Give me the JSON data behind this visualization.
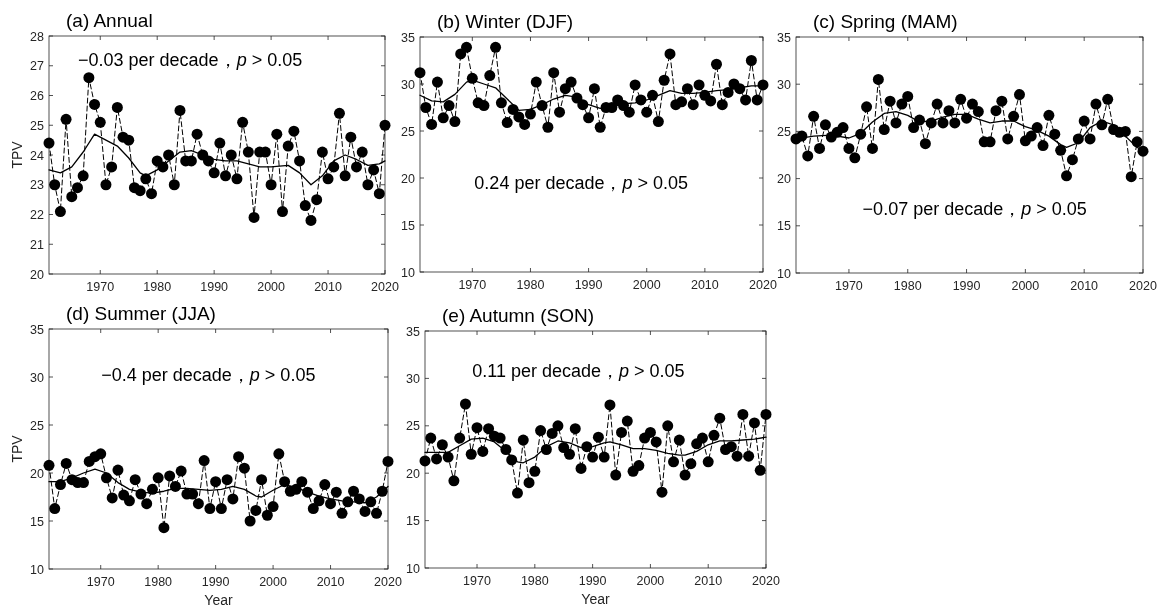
{
  "chart_data": [
    {
      "type": "line",
      "title": "(a) Annual",
      "ylabel": "TPV",
      "xlim": [
        1961,
        2020
      ],
      "xticks": [
        1970,
        1980,
        1990,
        2000,
        2010,
        2020
      ],
      "ylim": [
        20,
        28
      ],
      "yticks": [
        20,
        21,
        22,
        23,
        24,
        25,
        26,
        27,
        28
      ],
      "annotations": [
        "−0.03 per decade，*p* > 0.05"
      ],
      "series": [
        {
          "type": "line",
          "color": "#000000",
          "marker": "circle",
          "line_style": "dashed",
          "x": [
            1961,
            1962,
            1963,
            1964,
            1965,
            1966,
            1967,
            1968,
            1969,
            1970,
            1971,
            1972,
            1973,
            1974,
            1975,
            1976,
            1977,
            1978,
            1979,
            1980,
            1981,
            1982,
            1983,
            1984,
            1985,
            1986,
            1987,
            1988,
            1989,
            1990,
            1991,
            1992,
            1993,
            1994,
            1995,
            1996,
            1997,
            1998,
            1999,
            2000,
            2001,
            2002,
            2003,
            2004,
            2005,
            2006,
            2007,
            2008,
            2009,
            2010,
            2011,
            2012,
            2013,
            2014,
            2015,
            2016,
            2017,
            2018,
            2019,
            2020
          ],
          "values": [
            24.4,
            23.0,
            22.1,
            25.2,
            22.6,
            22.9,
            23.3,
            26.6,
            25.7,
            25.1,
            23.0,
            23.6,
            25.6,
            24.6,
            24.5,
            22.9,
            22.8,
            23.2,
            22.7,
            23.8,
            23.6,
            24.0,
            23.0,
            25.5,
            23.8,
            23.8,
            24.7,
            24.0,
            23.8,
            23.4,
            24.4,
            23.3,
            24.0,
            23.2,
            25.1,
            24.1,
            21.9,
            24.1,
            24.1,
            23.0,
            24.7,
            22.1,
            24.3,
            24.8,
            23.8,
            22.3,
            21.8,
            22.5,
            24.1,
            23.2,
            23.6,
            25.4,
            23.3,
            24.6,
            23.6,
            24.1,
            23.0,
            23.5,
            22.7,
            25.0
          ]
        },
        {
          "type": "line",
          "color": "#000000",
          "marker": "none",
          "line_style": "solid",
          "x": [
            1961,
            1963,
            1965,
            1967,
            1969,
            1971,
            1973,
            1975,
            1977,
            1978,
            1980,
            1982,
            1984,
            1986,
            1988,
            1990,
            1992,
            1994,
            1996,
            1998,
            2000,
            2003,
            2005,
            2007,
            2009,
            2011,
            2013,
            2015,
            2017,
            2019,
            2020
          ],
          "values": [
            23.5,
            23.4,
            23.6,
            24.1,
            24.7,
            24.5,
            24.3,
            23.9,
            23.4,
            23.3,
            23.5,
            23.8,
            24.1,
            24.15,
            24.0,
            23.85,
            23.8,
            23.8,
            23.7,
            23.6,
            23.6,
            23.65,
            23.4,
            23.0,
            23.3,
            23.8,
            24.0,
            23.85,
            23.65,
            23.7,
            23.8
          ]
        }
      ]
    },
    {
      "type": "line",
      "title": "(b) Winter (DJF)",
      "xlim": [
        1961,
        2020
      ],
      "xticks": [
        1970,
        1980,
        1990,
        2000,
        2010,
        2020
      ],
      "ylim": [
        10,
        35
      ],
      "yticks": [
        10,
        15,
        20,
        25,
        30,
        35
      ],
      "annotations": [
        "0.24 per decade，*p* > 0.05"
      ],
      "series": [
        {
          "type": "line",
          "color": "#000000",
          "marker": "circle",
          "line_style": "dashed",
          "x": [
            1961,
            1962,
            1963,
            1964,
            1965,
            1966,
            1967,
            1968,
            1969,
            1970,
            1971,
            1972,
            1973,
            1974,
            1975,
            1976,
            1977,
            1978,
            1979,
            1980,
            1981,
            1982,
            1983,
            1984,
            1985,
            1986,
            1987,
            1988,
            1989,
            1990,
            1991,
            1992,
            1993,
            1994,
            1995,
            1996,
            1997,
            1998,
            1999,
            2000,
            2001,
            2002,
            2003,
            2004,
            2005,
            2006,
            2007,
            2008,
            2009,
            2010,
            2011,
            2012,
            2013,
            2014,
            2015,
            2016,
            2017,
            2018,
            2019,
            2020
          ],
          "values": [
            31.2,
            27.5,
            25.7,
            30.2,
            26.4,
            27.7,
            26.0,
            33.2,
            33.9,
            30.6,
            28.0,
            27.7,
            30.9,
            33.9,
            28.0,
            25.9,
            27.3,
            26.5,
            25.7,
            26.8,
            30.2,
            27.7,
            25.4,
            31.2,
            27.0,
            29.5,
            30.2,
            28.5,
            27.8,
            26.4,
            29.5,
            25.4,
            27.5,
            27.5,
            28.3,
            27.7,
            27.0,
            29.9,
            28.3,
            27.0,
            28.8,
            26.0,
            30.4,
            33.2,
            27.8,
            28.1,
            29.5,
            27.8,
            29.9,
            28.8,
            28.2,
            32.1,
            27.8,
            29.1,
            30.0,
            29.5,
            28.3,
            32.5,
            28.3,
            29.9
          ]
        },
        {
          "type": "line",
          "color": "#000000",
          "marker": "none",
          "line_style": "solid",
          "x": [
            1961,
            1963,
            1965,
            1967,
            1969,
            1970,
            1972,
            1974,
            1976,
            1978,
            1980,
            1982,
            1984,
            1986,
            1988,
            1990,
            1992,
            1994,
            1996,
            1998,
            2000,
            2002,
            2004,
            2006,
            2008,
            2010,
            2012,
            2014,
            2016,
            2018,
            2020
          ],
          "values": [
            28.8,
            28.2,
            28.1,
            28.9,
            30.2,
            30.4,
            30.0,
            29.6,
            28.4,
            27.2,
            27.3,
            27.8,
            28.4,
            28.8,
            28.6,
            27.8,
            27.4,
            27.5,
            27.9,
            28.0,
            28.3,
            28.8,
            29.3,
            29.0,
            29.0,
            29.1,
            29.3,
            29.4,
            29.6,
            29.8,
            29.8
          ]
        }
      ]
    },
    {
      "type": "line",
      "title": "(c) Spring (MAM)",
      "xlim": [
        1961,
        2020
      ],
      "xticks": [
        1970,
        1980,
        1990,
        2000,
        2010,
        2020
      ],
      "ylim": [
        10,
        35
      ],
      "yticks": [
        10,
        15,
        20,
        25,
        30,
        35
      ],
      "annotations": [
        "−0.07 per decade，*p* > 0.05"
      ],
      "series": [
        {
          "type": "line",
          "color": "#000000",
          "marker": "circle",
          "line_style": "dashed",
          "x": [
            1961,
            1962,
            1963,
            1964,
            1965,
            1966,
            1967,
            1968,
            1969,
            1970,
            1971,
            1972,
            1973,
            1974,
            1975,
            1976,
            1977,
            1978,
            1979,
            1980,
            1981,
            1982,
            1983,
            1984,
            1985,
            1986,
            1987,
            1988,
            1989,
            1990,
            1991,
            1992,
            1993,
            1994,
            1995,
            1996,
            1997,
            1998,
            1999,
            2000,
            2001,
            2002,
            2003,
            2004,
            2005,
            2006,
            2007,
            2008,
            2009,
            2010,
            2011,
            2012,
            2013,
            2014,
            2015,
            2016,
            2017,
            2018,
            2019,
            2020
          ],
          "values": [
            24.2,
            24.5,
            22.4,
            26.6,
            23.2,
            25.7,
            24.4,
            24.9,
            25.4,
            23.2,
            22.2,
            24.7,
            27.6,
            23.2,
            30.5,
            25.2,
            28.2,
            25.9,
            27.9,
            28.7,
            25.4,
            26.2,
            23.7,
            25.9,
            27.9,
            25.9,
            27.2,
            25.9,
            28.4,
            26.4,
            27.9,
            27.1,
            23.9,
            23.9,
            27.2,
            28.2,
            24.2,
            26.6,
            28.9,
            24.0,
            24.5,
            25.4,
            23.5,
            26.7,
            24.7,
            23.0,
            20.3,
            22.0,
            24.2,
            26.1,
            24.2,
            27.9,
            25.7,
            28.4,
            25.2,
            24.9,
            25.0,
            20.2,
            23.9,
            22.9
          ]
        },
        {
          "type": "line",
          "color": "#000000",
          "marker": "none",
          "line_style": "solid",
          "x": [
            1961,
            1964,
            1967,
            1970,
            1972,
            1974,
            1976,
            1978,
            1980,
            1982,
            1984,
            1986,
            1988,
            1990,
            1992,
            1994,
            1996,
            1998,
            2000,
            2002,
            2004,
            2006,
            2007,
            2009,
            2011,
            2013,
            2015,
            2017,
            2019,
            2020
          ],
          "values": [
            24.2,
            24.5,
            24.6,
            24.3,
            24.8,
            26.0,
            26.9,
            27.1,
            26.7,
            26.0,
            26.1,
            26.5,
            26.8,
            26.8,
            26.3,
            25.9,
            26.1,
            26.1,
            25.5,
            25.1,
            24.5,
            23.6,
            23.3,
            23.8,
            25.4,
            26.1,
            25.7,
            24.5,
            23.3,
            23.0
          ]
        }
      ]
    },
    {
      "type": "line",
      "title": "(d) Summer (JJA)",
      "xlabel": "Year",
      "ylabel": "TPV",
      "xlim": [
        1961,
        2020
      ],
      "xticks": [
        1970,
        1980,
        1990,
        2000,
        2010,
        2020
      ],
      "ylim": [
        10,
        35
      ],
      "yticks": [
        10,
        15,
        20,
        25,
        30,
        35
      ],
      "annotations": [
        "−0.4 per decade，*p* > 0.05"
      ],
      "series": [
        {
          "type": "line",
          "color": "#000000",
          "marker": "circle",
          "line_style": "dashed",
          "x": [
            1961,
            1962,
            1963,
            1964,
            1965,
            1966,
            1967,
            1968,
            1969,
            1970,
            1971,
            1972,
            1973,
            1974,
            1975,
            1976,
            1977,
            1978,
            1979,
            1980,
            1981,
            1982,
            1983,
            1984,
            1985,
            1986,
            1987,
            1988,
            1989,
            1990,
            1991,
            1992,
            1993,
            1994,
            1995,
            1996,
            1997,
            1998,
            1999,
            2000,
            2001,
            2002,
            2003,
            2004,
            2005,
            2006,
            2007,
            2008,
            2009,
            2010,
            2011,
            2012,
            2013,
            2014,
            2015,
            2016,
            2017,
            2018,
            2019,
            2020
          ],
          "values": [
            20.8,
            16.3,
            18.8,
            21.0,
            19.3,
            19.0,
            19.0,
            21.2,
            21.7,
            22.0,
            19.5,
            17.4,
            20.3,
            17.7,
            17.1,
            19.3,
            17.8,
            16.8,
            18.3,
            19.5,
            14.3,
            19.7,
            18.6,
            20.2,
            17.8,
            17.8,
            16.8,
            21.3,
            16.3,
            19.1,
            16.3,
            19.3,
            17.3,
            21.7,
            20.5,
            15.0,
            16.1,
            19.3,
            15.6,
            16.5,
            22.0,
            19.1,
            18.1,
            18.3,
            19.1,
            18.0,
            16.3,
            17.1,
            18.8,
            16.8,
            18.0,
            15.8,
            17.0,
            18.1,
            17.3,
            16.0,
            17.0,
            15.8,
            18.1,
            21.2
          ]
        },
        {
          "type": "line",
          "color": "#000000",
          "marker": "none",
          "line_style": "solid",
          "x": [
            1961,
            1963,
            1965,
            1967,
            1969,
            1971,
            1973,
            1975,
            1977,
            1979,
            1981,
            1983,
            1985,
            1987,
            1989,
            1991,
            1993,
            1995,
            1997,
            1998,
            2000,
            2002,
            2004,
            2006,
            2008,
            2010,
            2012,
            2014,
            2016,
            2018,
            2020
          ],
          "values": [
            19.1,
            19.1,
            19.5,
            20.0,
            20.4,
            20.0,
            19.0,
            18.3,
            18.0,
            17.9,
            18.1,
            18.4,
            18.4,
            18.3,
            18.2,
            18.3,
            18.6,
            18.3,
            17.6,
            17.5,
            18.2,
            18.8,
            18.5,
            18.0,
            17.6,
            17.3,
            17.1,
            17.0,
            16.9,
            17.5,
            18.6
          ]
        }
      ]
    },
    {
      "type": "line",
      "title": "(e) Autumn (SON)",
      "xlabel": "Year",
      "xlim": [
        1961,
        2020
      ],
      "xticks": [
        1970,
        1980,
        1990,
        2000,
        2010,
        2020
      ],
      "ylim": [
        10,
        35
      ],
      "yticks": [
        10,
        15,
        20,
        25,
        30,
        35
      ],
      "annotations": [
        "0.11 per decade，*p* > 0.05"
      ],
      "series": [
        {
          "type": "line",
          "color": "#000000",
          "marker": "circle",
          "line_style": "dashed",
          "x": [
            1961,
            1962,
            1963,
            1964,
            1965,
            1966,
            1967,
            1968,
            1969,
            1970,
            1971,
            1972,
            1973,
            1974,
            1975,
            1976,
            1977,
            1978,
            1979,
            1980,
            1981,
            1982,
            1983,
            1984,
            1985,
            1986,
            1987,
            1988,
            1989,
            1990,
            1991,
            1992,
            1993,
            1994,
            1995,
            1996,
            1997,
            1998,
            1999,
            2000,
            2001,
            2002,
            2003,
            2004,
            2005,
            2006,
            2007,
            2008,
            2009,
            2010,
            2011,
            2012,
            2013,
            2014,
            2015,
            2016,
            2017,
            2018,
            2019,
            2020
          ],
          "values": [
            21.3,
            23.7,
            21.5,
            23.0,
            21.7,
            19.2,
            23.7,
            27.3,
            22.0,
            24.8,
            22.3,
            24.7,
            23.9,
            23.7,
            22.5,
            21.4,
            17.9,
            23.5,
            19.0,
            20.2,
            24.5,
            22.5,
            24.2,
            25.0,
            22.7,
            22.0,
            24.7,
            20.5,
            22.8,
            21.7,
            23.8,
            21.7,
            27.2,
            19.8,
            24.3,
            25.5,
            20.2,
            20.8,
            23.7,
            24.3,
            23.3,
            18.0,
            25.0,
            21.2,
            23.5,
            19.8,
            21.0,
            23.1,
            23.7,
            21.2,
            24.0,
            25.8,
            22.5,
            22.8,
            21.8,
            26.2,
            21.8,
            25.3,
            20.3,
            26.2
          ]
        },
        {
          "type": "line",
          "color": "#000000",
          "marker": "none",
          "line_style": "solid",
          "x": [
            1961,
            1963,
            1965,
            1967,
            1969,
            1971,
            1973,
            1975,
            1977,
            1978,
            1980,
            1982,
            1984,
            1986,
            1988,
            1990,
            1992,
            1993,
            1995,
            1997,
            1999,
            2001,
            2003,
            2005,
            2006,
            2008,
            2010,
            2012,
            2014,
            2016,
            2018,
            2020
          ],
          "values": [
            22.2,
            22.2,
            22.2,
            22.9,
            23.6,
            23.7,
            23.3,
            22.3,
            21.2,
            21.1,
            21.7,
            22.8,
            23.4,
            23.2,
            22.7,
            22.8,
            23.2,
            23.3,
            23.0,
            22.6,
            22.6,
            22.4,
            22.1,
            21.9,
            21.9,
            22.3,
            23.0,
            23.4,
            23.4,
            23.5,
            23.6,
            23.8
          ]
        }
      ]
    }
  ]
}
